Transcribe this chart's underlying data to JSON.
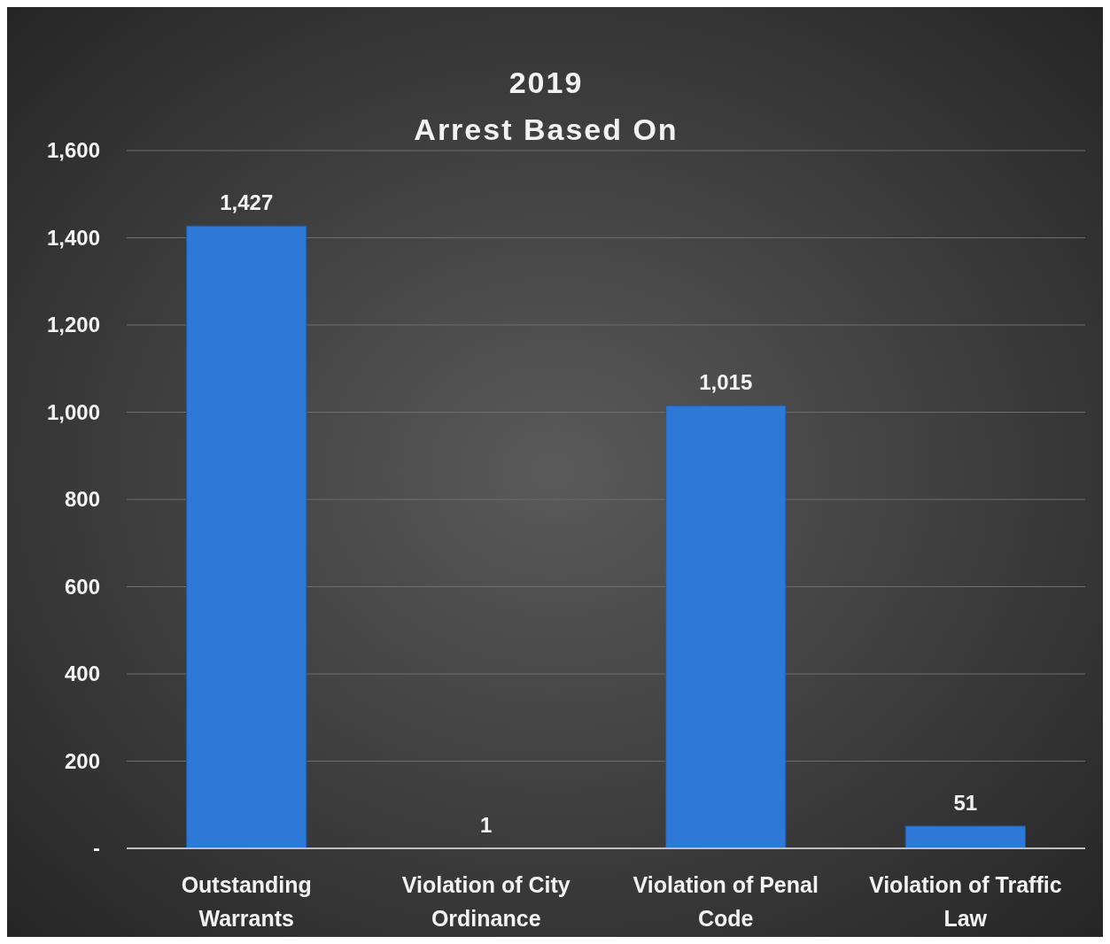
{
  "chart_data": {
    "type": "bar",
    "title": "2019",
    "subtitle": "Arrest Based On",
    "categories": [
      "Outstanding Warrants",
      "Violation of City Ordinance",
      "Violation of Penal Code",
      "Violation of Traffic Law"
    ],
    "values": [
      1427,
      1,
      1015,
      51
    ],
    "color": "#2e78d8",
    "ylim": [
      0,
      1600
    ],
    "yticks": [
      {
        "value": 0,
        "label": "-"
      },
      {
        "value": 200,
        "label": "200"
      },
      {
        "value": 400,
        "label": "400"
      },
      {
        "value": 600,
        "label": "600"
      },
      {
        "value": 800,
        "label": "800"
      },
      {
        "value": 1000,
        "label": "1,000"
      },
      {
        "value": 1200,
        "label": "1,200"
      },
      {
        "value": 1400,
        "label": "1,400"
      },
      {
        "value": 1600,
        "label": "1,600"
      }
    ],
    "value_labels": [
      "1,427",
      "1",
      "1,015",
      "51"
    ],
    "grid": "y"
  }
}
